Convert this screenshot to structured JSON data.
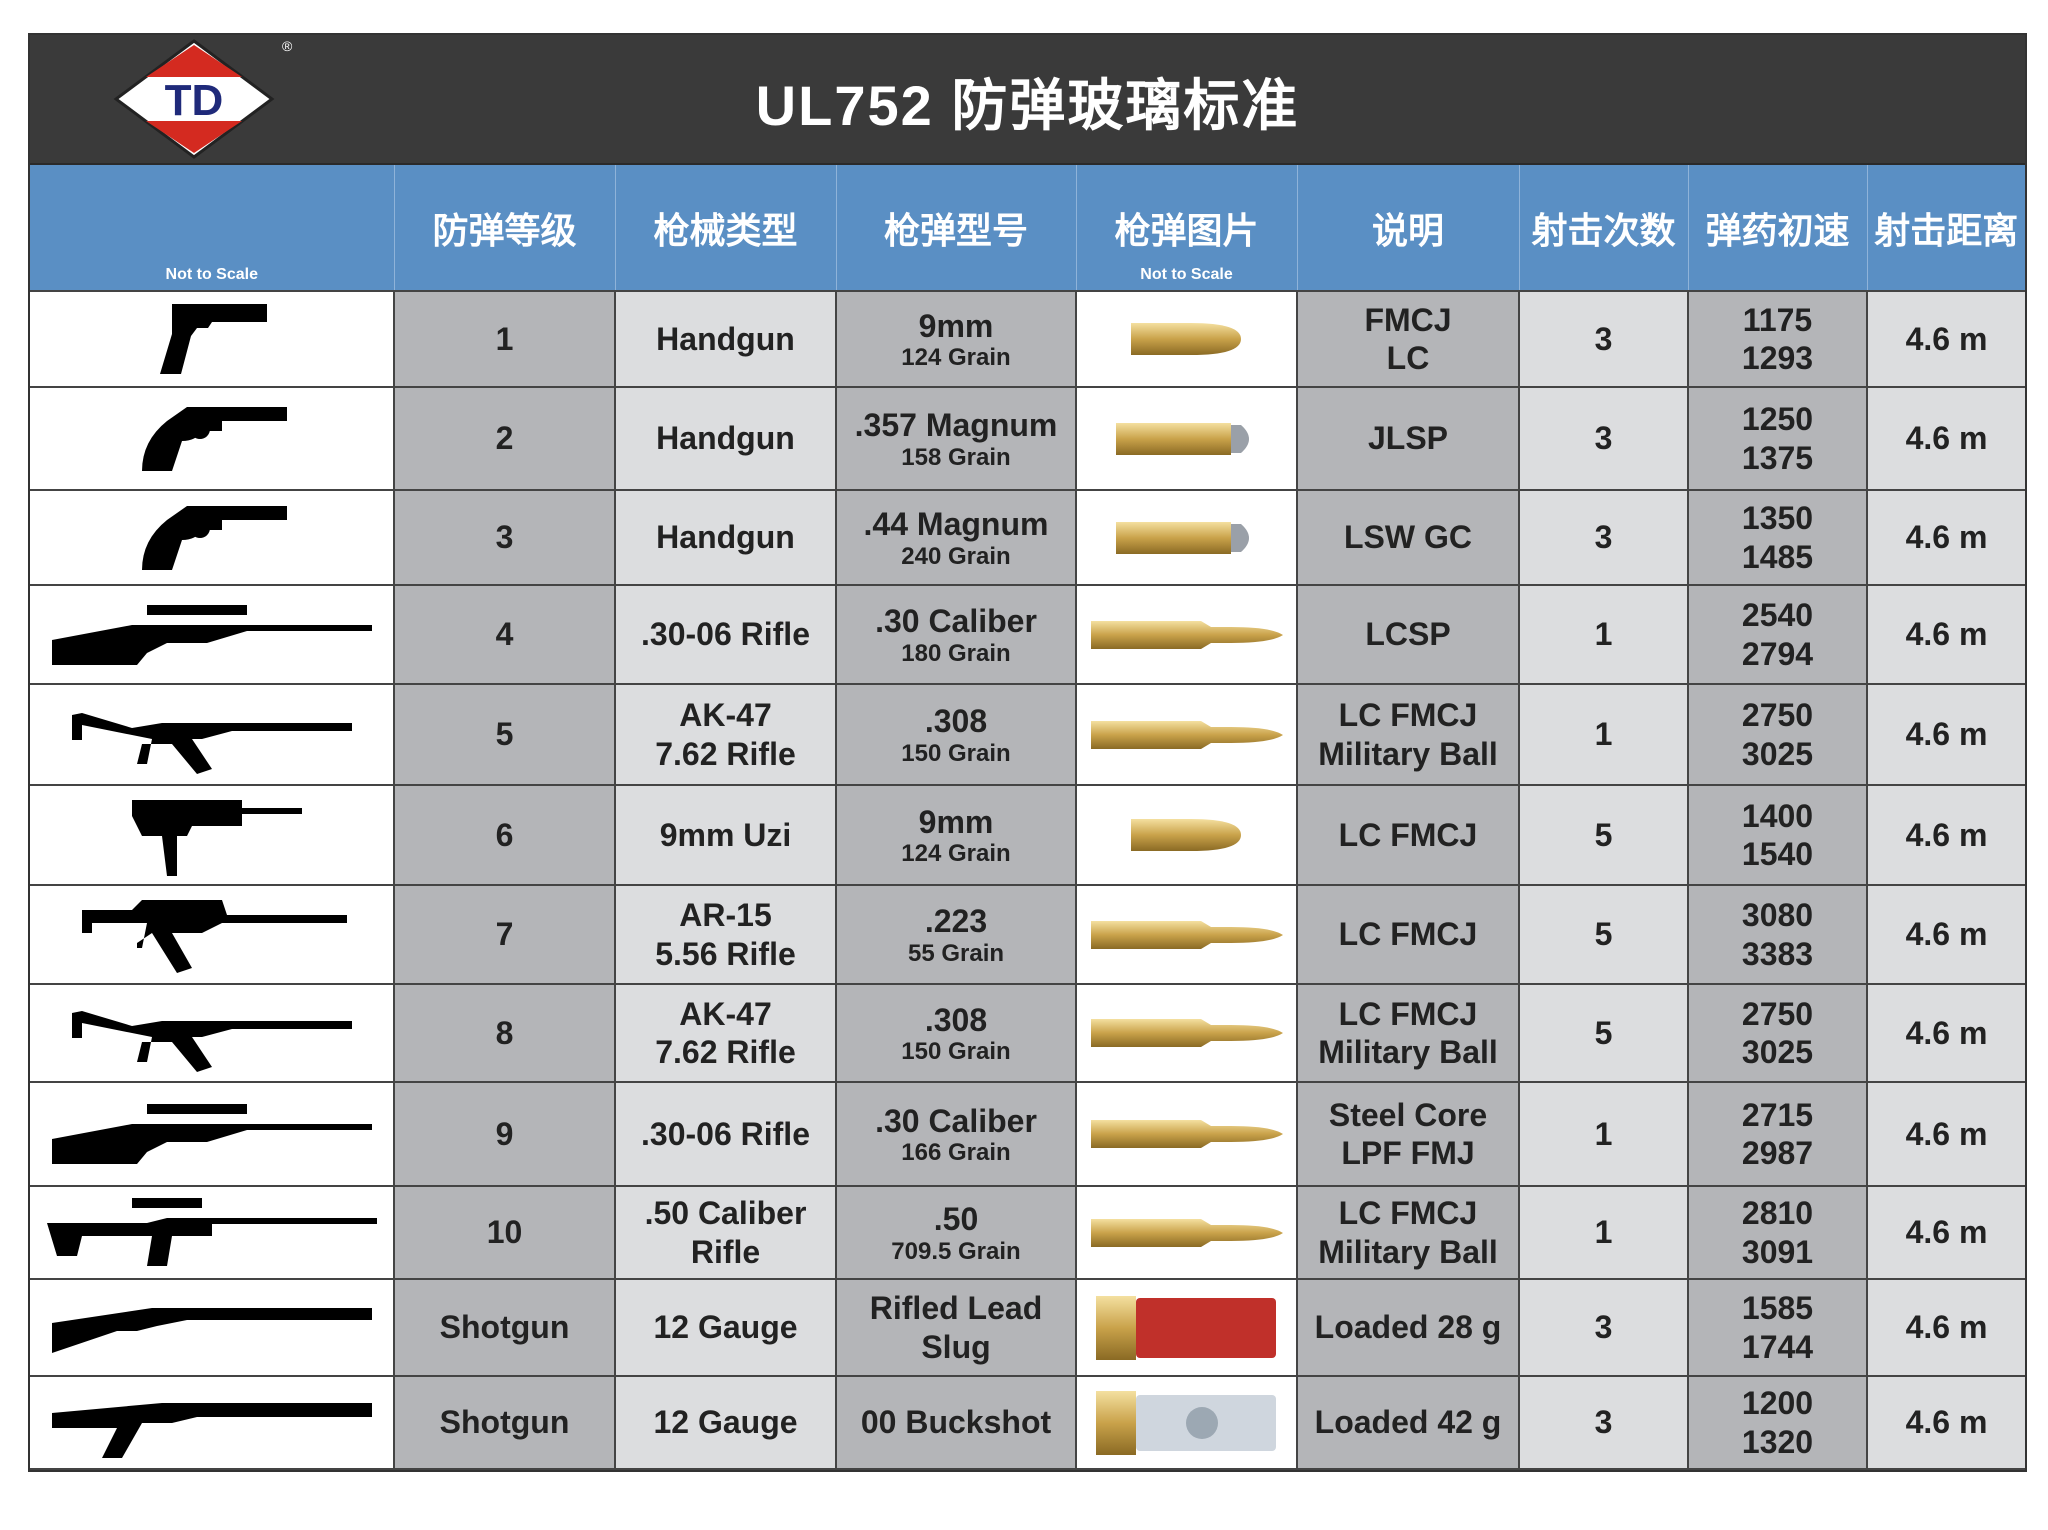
{
  "header": {
    "title": "UL752  防弹玻璃标准",
    "logo_text": "TD",
    "logo_mark": "®"
  },
  "columns": [
    "",
    "防弹等级",
    "枪械类型",
    "枪弹型号",
    "枪弹图片",
    "说明",
    "射击次数",
    "弹药初速",
    "射击距离"
  ],
  "not_to_scale": "Not to Scale",
  "colors": {
    "title_bg": "#3a3a3a",
    "header_bg": "#5a8fc4",
    "cell_dark": "#b4b5b8",
    "cell_light": "#dcdddf",
    "logo_red": "#d42a20",
    "logo_blue": "#1f2a7a"
  },
  "rows": [
    {
      "gun_icon": "handgun-icon",
      "level": "1",
      "type": "Handgun",
      "type2": "",
      "ammo": "9mm",
      "grain": "124 Grain",
      "bullet_icon": "pistol-bullet-icon",
      "desc": "FMCJ",
      "desc2": "LC",
      "shots": "3",
      "v1": "1175",
      "v2": "1293",
      "dist": "4.6 m"
    },
    {
      "gun_icon": "revolver-icon",
      "level": "2",
      "type": "Handgun",
      "type2": "",
      "ammo": ".357 Magnum",
      "grain": "158 Grain",
      "bullet_icon": "magnum-bullet-icon",
      "desc": "JLSP",
      "desc2": "",
      "shots": "3",
      "v1": "1250",
      "v2": "1375",
      "dist": "4.6 m"
    },
    {
      "gun_icon": "revolver-icon",
      "level": "3",
      "type": "Handgun",
      "type2": "",
      "ammo": ".44 Magnum",
      "grain": "240 Grain",
      "bullet_icon": "magnum-bullet-icon",
      "desc": "LSW GC",
      "desc2": "",
      "shots": "3",
      "v1": "1350",
      "v2": "1485",
      "dist": "4.6 m"
    },
    {
      "gun_icon": "scoped-rifle-icon",
      "level": "4",
      "type": ".30-06 Rifle",
      "type2": "",
      "ammo": ".30 Caliber",
      "grain": "180 Grain",
      "bullet_icon": "rifle-bullet-icon",
      "desc": "LCSP",
      "desc2": "",
      "shots": "1",
      "v1": "2540",
      "v2": "2794",
      "dist": "4.6 m"
    },
    {
      "gun_icon": "ak47-icon",
      "level": "5",
      "type": "AK-47",
      "type2": "7.62 Rifle",
      "ammo": ".308",
      "grain": "150 Grain",
      "bullet_icon": "rifle-bullet-icon",
      "desc": "LC FMCJ",
      "desc2": "Military Ball",
      "shots": "1",
      "v1": "2750",
      "v2": "3025",
      "dist": "4.6 m"
    },
    {
      "gun_icon": "uzi-icon",
      "level": "6",
      "type": "9mm Uzi",
      "type2": "",
      "ammo": "9mm",
      "grain": "124 Grain",
      "bullet_icon": "pistol-bullet-icon",
      "desc": "LC FMCJ",
      "desc2": "",
      "shots": "5",
      "v1": "1400",
      "v2": "1540",
      "dist": "4.6 m"
    },
    {
      "gun_icon": "ar15-icon",
      "level": "7",
      "type": "AR-15",
      "type2": "5.56 Rifle",
      "ammo": ".223",
      "grain": "55 Grain",
      "bullet_icon": "rifle-bullet-icon",
      "desc": "LC FMCJ",
      "desc2": "",
      "shots": "5",
      "v1": "3080",
      "v2": "3383",
      "dist": "4.6 m"
    },
    {
      "gun_icon": "ak47-icon",
      "level": "8",
      "type": "AK-47",
      "type2": "7.62 Rifle",
      "ammo": ".308",
      "grain": "150 Grain",
      "bullet_icon": "rifle-bullet-icon",
      "desc": "LC FMCJ",
      "desc2": "Military Ball",
      "shots": "5",
      "v1": "2750",
      "v2": "3025",
      "dist": "4.6 m"
    },
    {
      "gun_icon": "scoped-rifle-icon",
      "level": "9",
      "type": ".30-06 Rifle",
      "type2": "",
      "ammo": ".30 Caliber",
      "grain": "166 Grain",
      "bullet_icon": "rifle-bullet-icon",
      "desc": "Steel Core",
      "desc2": "LPF FMJ",
      "shots": "1",
      "v1": "2715",
      "v2": "2987",
      "dist": "4.6 m"
    },
    {
      "gun_icon": "sniper-rifle-icon",
      "level": "10",
      "type": ".50 Caliber",
      "type2": "Rifle",
      "ammo": ".50",
      "grain": "709.5 Grain",
      "bullet_icon": "rifle-bullet-icon",
      "desc": "LC FMCJ",
      "desc2": "Military Ball",
      "shots": "1",
      "v1": "2810",
      "v2": "3091",
      "dist": "4.6 m"
    },
    {
      "gun_icon": "shotgun-icon",
      "level": "Shotgun",
      "type": "12 Gauge",
      "type2": "",
      "ammo": "Rifled Lead",
      "grain": "Slug",
      "bullet_icon": "red-shell-icon",
      "desc": "Loaded 28 g",
      "desc2": "",
      "shots": "3",
      "v1": "1585",
      "v2": "1744",
      "dist": "4.6 m"
    },
    {
      "gun_icon": "pistol-grip-shotgun-icon",
      "level": "Shotgun",
      "type": "12 Gauge",
      "type2": "",
      "ammo": "00 Buckshot",
      "grain": "",
      "bullet_icon": "clear-shell-icon",
      "desc": "Loaded 42 g",
      "desc2": "",
      "shots": "3",
      "v1": "1200",
      "v2": "1320",
      "dist": "4.6 m"
    }
  ]
}
